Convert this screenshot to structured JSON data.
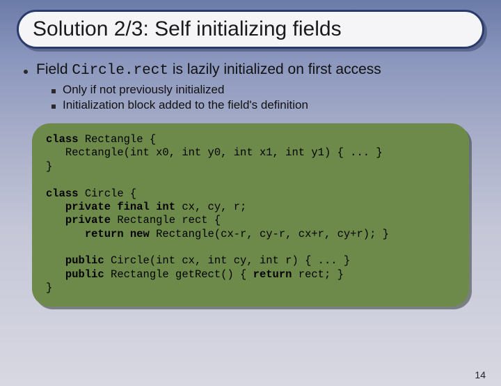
{
  "title": "Solution 2/3: Self initializing fields",
  "bullet": {
    "prefix": "Field ",
    "code_ref": "Circle.rect",
    "suffix": " is lazily initialized on first access"
  },
  "sub_bullets": [
    "Only if not previously initialized",
    "Initialization block added to the field's definition"
  ],
  "code": {
    "l1_kw": "class",
    "l1_rest": " Rectangle {",
    "l2": "   Rectangle(int x0, int y0, int x1, int y1) { ... }",
    "l3": "}",
    "l5_kw": "class",
    "l5_rest": " Circle {",
    "l6a": "   ",
    "l6_kw": "private final int",
    "l6b": " cx, cy, r;",
    "l7a": "   ",
    "l7_kw": "private",
    "l7b": " Rectangle rect {",
    "l8a": "      ",
    "l8_kw": "return new",
    "l8b": " Rectangle(cx-r, cy-r, cx+r, cy+r); }",
    "l10a": "   ",
    "l10_kw": "public",
    "l10b": " Circle(int cx, int cy, int r) { ... }",
    "l11a": "   ",
    "l11_kw": "public",
    "l11b": " Rectangle getRect() { ",
    "l11_kw2": "return",
    "l11c": " rect; }",
    "l12": "}"
  },
  "page_number": "14",
  "colors": {
    "frame_border": "#2a3a6a",
    "code_bg": "#6d8a4a"
  }
}
